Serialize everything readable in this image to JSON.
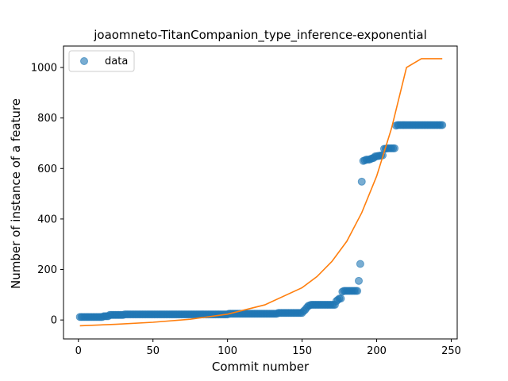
{
  "chart_data": {
    "type": "scatter",
    "title": "joaomneto-TitanCompanion_type_inference-exponential",
    "xlabel": "Commit number",
    "ylabel": "Number of instance of a feature",
    "xlim": [
      -10,
      254
    ],
    "ylim": [
      -75,
      1085
    ],
    "xticks": [
      0,
      50,
      100,
      150,
      200,
      250
    ],
    "yticks": [
      0,
      200,
      400,
      600,
      800,
      1000
    ],
    "legend": {
      "position": "top-left",
      "entries": [
        "data"
      ]
    },
    "colors": {
      "data": "#1f77b4",
      "fit": "#ff7f0e"
    },
    "grid": false,
    "series": [
      {
        "name": "data",
        "kind": "scatter",
        "points": [
          [
            1,
            12
          ],
          [
            2,
            12
          ],
          [
            3,
            12
          ],
          [
            4,
            12
          ],
          [
            5,
            12
          ],
          [
            6,
            12
          ],
          [
            7,
            12
          ],
          [
            8,
            12
          ],
          [
            9,
            12
          ],
          [
            10,
            12
          ],
          [
            11,
            12
          ],
          [
            12,
            12
          ],
          [
            13,
            12
          ],
          [
            14,
            12
          ],
          [
            15,
            12
          ],
          [
            16,
            12
          ],
          [
            17,
            15
          ],
          [
            18,
            15
          ],
          [
            19,
            15
          ],
          [
            20,
            15
          ],
          [
            21,
            20
          ],
          [
            22,
            20
          ],
          [
            23,
            20
          ],
          [
            24,
            20
          ],
          [
            25,
            20
          ],
          [
            26,
            20
          ],
          [
            27,
            20
          ],
          [
            28,
            20
          ],
          [
            29,
            20
          ],
          [
            30,
            20
          ],
          [
            31,
            22
          ],
          [
            32,
            22
          ],
          [
            33,
            22
          ],
          [
            34,
            22
          ],
          [
            35,
            22
          ],
          [
            36,
            22
          ],
          [
            37,
            22
          ],
          [
            38,
            22
          ],
          [
            39,
            22
          ],
          [
            40,
            22
          ],
          [
            41,
            22
          ],
          [
            42,
            22
          ],
          [
            43,
            22
          ],
          [
            44,
            22
          ],
          [
            45,
            22
          ],
          [
            46,
            22
          ],
          [
            47,
            22
          ],
          [
            48,
            22
          ],
          [
            49,
            22
          ],
          [
            50,
            22
          ],
          [
            51,
            22
          ],
          [
            52,
            22
          ],
          [
            53,
            22
          ],
          [
            54,
            22
          ],
          [
            55,
            22
          ],
          [
            56,
            22
          ],
          [
            57,
            22
          ],
          [
            58,
            22
          ],
          [
            59,
            22
          ],
          [
            60,
            22
          ],
          [
            61,
            22
          ],
          [
            62,
            22
          ],
          [
            63,
            22
          ],
          [
            64,
            22
          ],
          [
            65,
            22
          ],
          [
            66,
            22
          ],
          [
            67,
            22
          ],
          [
            68,
            22
          ],
          [
            69,
            22
          ],
          [
            70,
            22
          ],
          [
            71,
            22
          ],
          [
            72,
            22
          ],
          [
            73,
            22
          ],
          [
            74,
            22
          ],
          [
            75,
            22
          ],
          [
            76,
            22
          ],
          [
            77,
            22
          ],
          [
            78,
            22
          ],
          [
            79,
            22
          ],
          [
            80,
            22
          ],
          [
            81,
            22
          ],
          [
            82,
            22
          ],
          [
            83,
            22
          ],
          [
            84,
            22
          ],
          [
            85,
            22
          ],
          [
            86,
            22
          ],
          [
            87,
            22
          ],
          [
            88,
            22
          ],
          [
            89,
            22
          ],
          [
            90,
            22
          ],
          [
            91,
            22
          ],
          [
            92,
            22
          ],
          [
            93,
            22
          ],
          [
            94,
            22
          ],
          [
            95,
            22
          ],
          [
            96,
            22
          ],
          [
            97,
            22
          ],
          [
            98,
            22
          ],
          [
            99,
            22
          ],
          [
            100,
            22
          ],
          [
            101,
            25
          ],
          [
            102,
            25
          ],
          [
            103,
            25
          ],
          [
            104,
            25
          ],
          [
            105,
            25
          ],
          [
            106,
            25
          ],
          [
            107,
            25
          ],
          [
            108,
            25
          ],
          [
            109,
            25
          ],
          [
            110,
            25
          ],
          [
            111,
            25
          ],
          [
            112,
            25
          ],
          [
            113,
            25
          ],
          [
            114,
            25
          ],
          [
            115,
            25
          ],
          [
            116,
            25
          ],
          [
            117,
            25
          ],
          [
            118,
            25
          ],
          [
            119,
            25
          ],
          [
            120,
            25
          ],
          [
            121,
            25
          ],
          [
            122,
            25
          ],
          [
            123,
            25
          ],
          [
            124,
            25
          ],
          [
            125,
            25
          ],
          [
            126,
            25
          ],
          [
            127,
            25
          ],
          [
            128,
            25
          ],
          [
            129,
            25
          ],
          [
            130,
            25
          ],
          [
            131,
            25
          ],
          [
            132,
            25
          ],
          [
            133,
            25
          ],
          [
            134,
            28
          ],
          [
            135,
            28
          ],
          [
            136,
            28
          ],
          [
            137,
            28
          ],
          [
            138,
            28
          ],
          [
            139,
            28
          ],
          [
            140,
            28
          ],
          [
            141,
            28
          ],
          [
            142,
            28
          ],
          [
            143,
            28
          ],
          [
            144,
            28
          ],
          [
            145,
            28
          ],
          [
            146,
            28
          ],
          [
            147,
            28
          ],
          [
            148,
            28
          ],
          [
            149,
            28
          ],
          [
            150,
            28
          ],
          [
            151,
            35
          ],
          [
            152,
            40
          ],
          [
            153,
            48
          ],
          [
            154,
            55
          ],
          [
            155,
            58
          ],
          [
            156,
            60
          ],
          [
            157,
            60
          ],
          [
            158,
            60
          ],
          [
            159,
            60
          ],
          [
            160,
            60
          ],
          [
            161,
            60
          ],
          [
            162,
            60
          ],
          [
            163,
            60
          ],
          [
            164,
            60
          ],
          [
            165,
            60
          ],
          [
            166,
            60
          ],
          [
            167,
            60
          ],
          [
            168,
            60
          ],
          [
            169,
            60
          ],
          [
            170,
            60
          ],
          [
            171,
            60
          ],
          [
            172,
            60
          ],
          [
            173,
            75
          ],
          [
            174,
            80
          ],
          [
            175,
            85
          ],
          [
            176,
            85
          ],
          [
            177,
            112
          ],
          [
            178,
            115
          ],
          [
            179,
            115
          ],
          [
            180,
            115
          ],
          [
            181,
            115
          ],
          [
            182,
            115
          ],
          [
            183,
            115
          ],
          [
            184,
            115
          ],
          [
            185,
            115
          ],
          [
            186,
            115
          ],
          [
            187,
            115
          ],
          [
            188,
            155
          ],
          [
            189,
            222
          ],
          [
            190,
            548
          ],
          [
            191,
            630
          ],
          [
            192,
            632
          ],
          [
            193,
            635
          ],
          [
            194,
            635
          ],
          [
            195,
            635
          ],
          [
            196,
            638
          ],
          [
            197,
            640
          ],
          [
            198,
            642
          ],
          [
            199,
            648
          ],
          [
            200,
            648
          ],
          [
            201,
            650
          ],
          [
            202,
            650
          ],
          [
            203,
            652
          ],
          [
            204,
            652
          ],
          [
            205,
            678
          ],
          [
            206,
            678
          ],
          [
            207,
            680
          ],
          [
            208,
            680
          ],
          [
            209,
            680
          ],
          [
            210,
            680
          ],
          [
            211,
            680
          ],
          [
            212,
            680
          ],
          [
            213,
            770
          ],
          [
            214,
            772
          ],
          [
            215,
            772
          ],
          [
            216,
            772
          ],
          [
            217,
            772
          ],
          [
            218,
            772
          ],
          [
            219,
            772
          ],
          [
            220,
            772
          ],
          [
            221,
            772
          ],
          [
            222,
            772
          ],
          [
            223,
            772
          ],
          [
            224,
            772
          ],
          [
            225,
            772
          ],
          [
            226,
            772
          ],
          [
            227,
            772
          ],
          [
            228,
            772
          ],
          [
            229,
            772
          ],
          [
            230,
            772
          ],
          [
            231,
            772
          ],
          [
            232,
            772
          ],
          [
            233,
            772
          ],
          [
            234,
            772
          ],
          [
            235,
            772
          ],
          [
            236,
            772
          ],
          [
            237,
            772
          ],
          [
            238,
            772
          ],
          [
            239,
            772
          ],
          [
            240,
            772
          ],
          [
            241,
            772
          ],
          [
            242,
            772
          ],
          [
            243,
            772
          ],
          [
            244,
            772
          ]
        ]
      },
      {
        "kind": "line",
        "model": "exponential",
        "x": [
          1,
          25,
          50,
          75,
          100,
          125,
          150,
          160,
          170,
          180,
          190,
          200,
          210,
          220,
          230,
          240,
          244
        ],
        "y": [
          -23,
          -17,
          -9,
          3,
          23,
          60,
          128,
          172,
          232,
          312,
          425,
          570,
          760,
          1000,
          1035,
          1035,
          1035
        ]
      }
    ]
  }
}
